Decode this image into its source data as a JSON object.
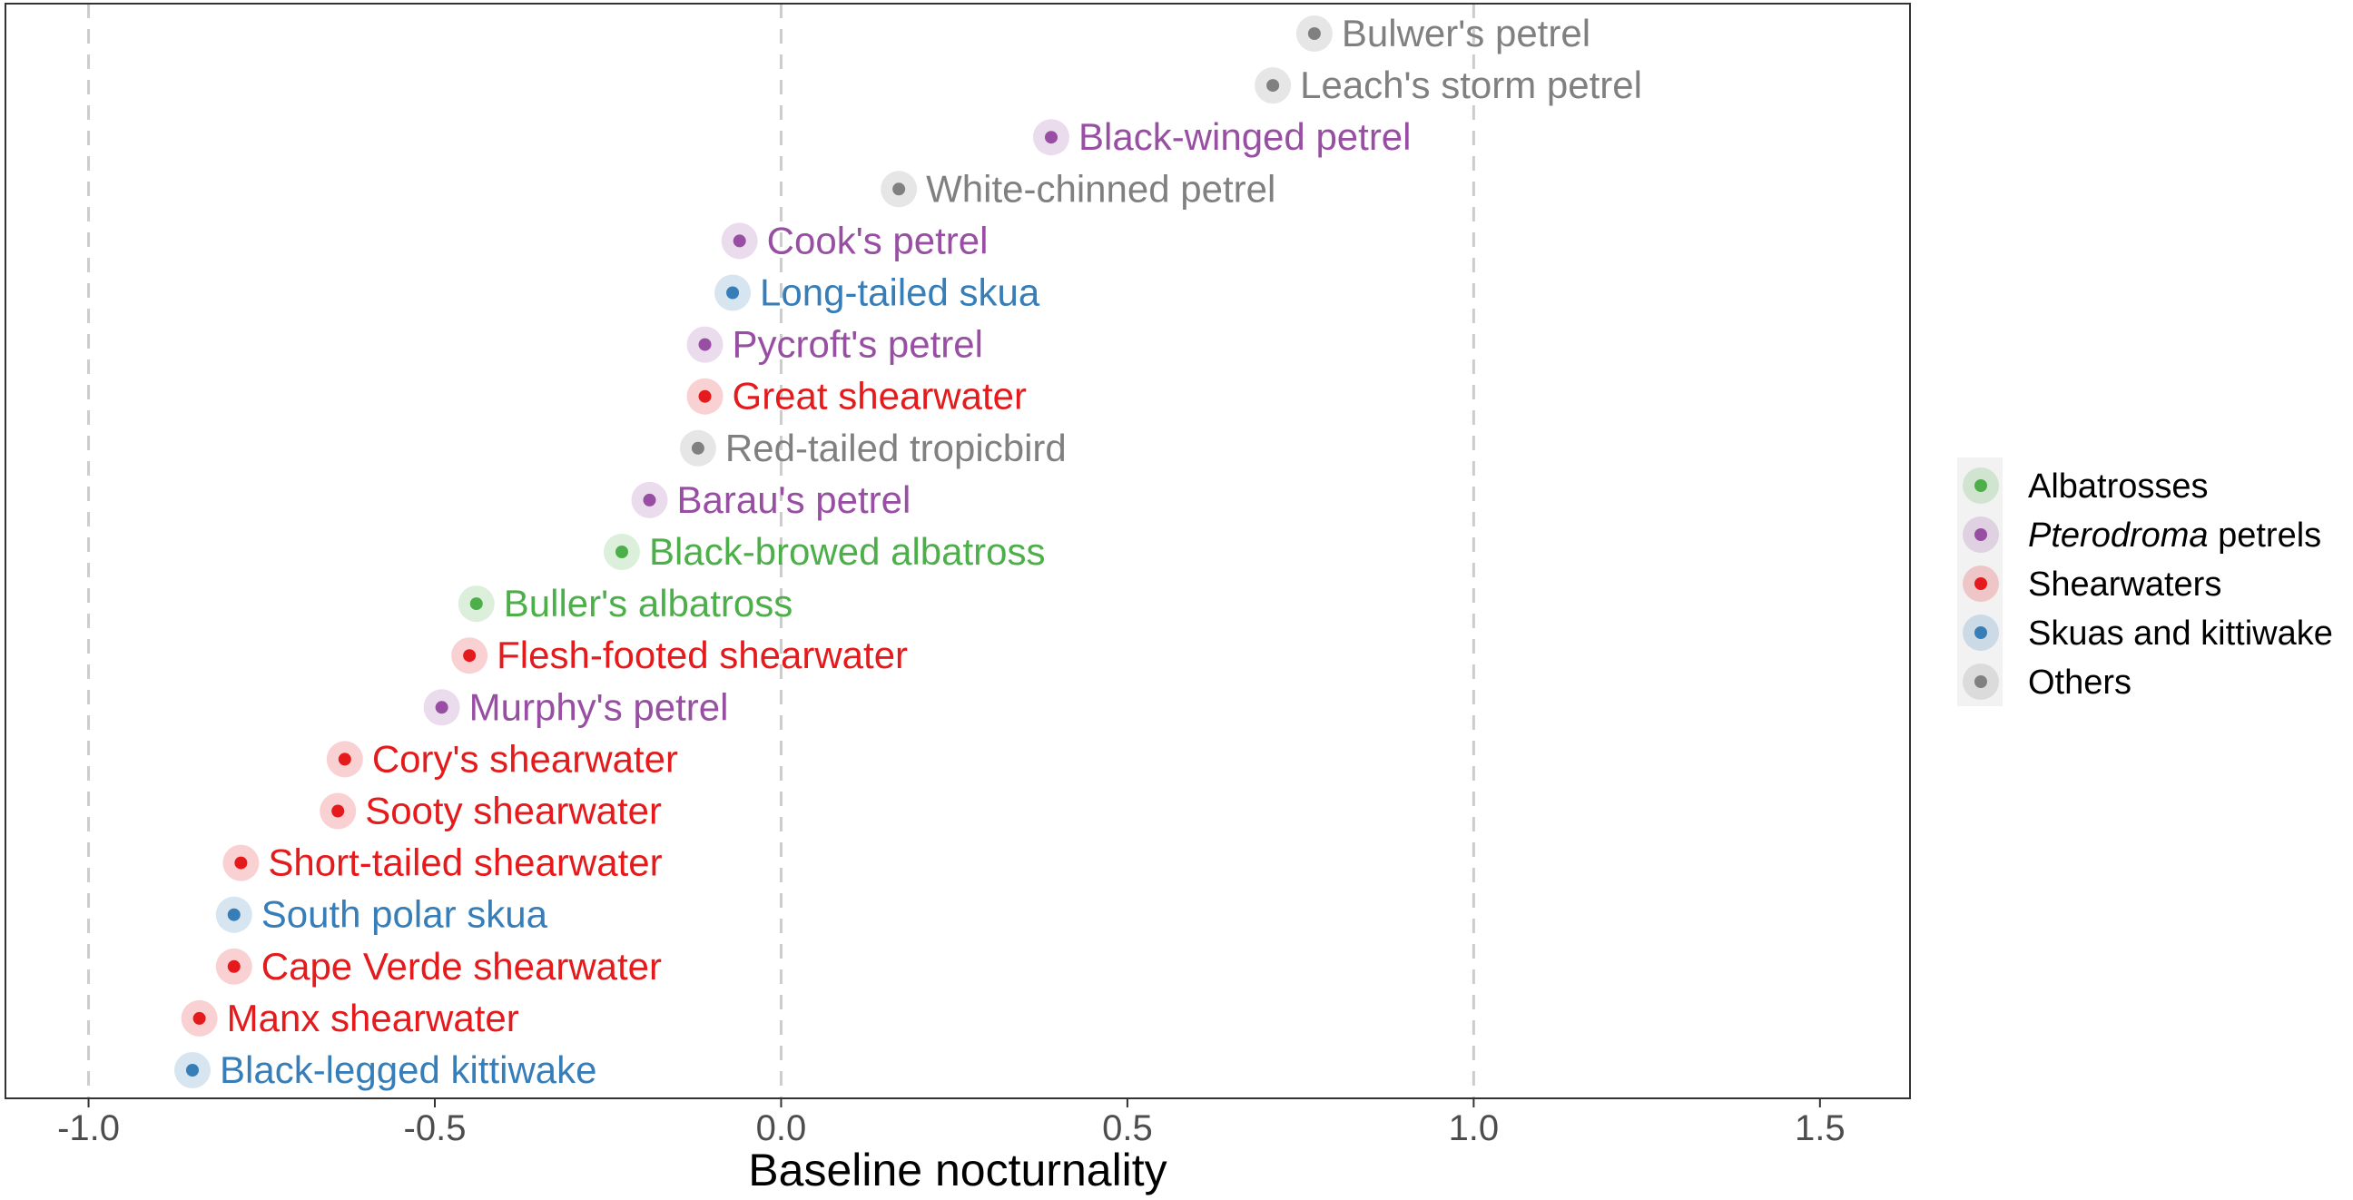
{
  "chart_data": {
    "type": "scatter",
    "xlabel": "Baseline nocturnality",
    "xlim": [
      -1.12,
      1.63
    ],
    "xticks": [
      -1.0,
      -0.5,
      0.0,
      0.5,
      1.0,
      1.5
    ],
    "xtick_labels": [
      "-1.0",
      "-0.5",
      "0.0",
      "0.5",
      "1.0",
      "1.5"
    ],
    "vertical_reference_lines": [
      -1.0,
      0.0,
      1.0
    ],
    "grid": false,
    "legend_position": "right",
    "groups": [
      {
        "name_italic": "",
        "name": "Albatrosses",
        "color": "#4daf4a"
      },
      {
        "name_italic": "Pterodroma",
        "name": " petrels",
        "color": "#984ea3"
      },
      {
        "name_italic": "",
        "name": "Shearwaters",
        "color": "#e41a1c"
      },
      {
        "name_italic": "",
        "name": "Skuas and kittiwake",
        "color": "#377eb8"
      },
      {
        "name_italic": "",
        "name": "Others",
        "color": "#808080"
      }
    ],
    "points": [
      {
        "species": "Bulwer's petrel",
        "x": 0.77,
        "group": 4
      },
      {
        "species": "Leach's storm petrel",
        "x": 0.71,
        "group": 4
      },
      {
        "species": "Black-winged petrel",
        "x": 0.39,
        "group": 1
      },
      {
        "species": "White-chinned petrel",
        "x": 0.17,
        "group": 4
      },
      {
        "species": "Cook's petrel",
        "x": -0.06,
        "group": 1
      },
      {
        "species": "Long-tailed skua",
        "x": -0.07,
        "group": 3
      },
      {
        "species": "Pycroft's petrel",
        "x": -0.11,
        "group": 1
      },
      {
        "species": "Great shearwater",
        "x": -0.11,
        "group": 2
      },
      {
        "species": "Red-tailed tropicbird",
        "x": -0.12,
        "group": 4
      },
      {
        "species": "Barau's petrel",
        "x": -0.19,
        "group": 1
      },
      {
        "species": "Black-browed albatross",
        "x": -0.23,
        "group": 0
      },
      {
        "species": "Buller's albatross",
        "x": -0.44,
        "group": 0
      },
      {
        "species": "Flesh-footed shearwater",
        "x": -0.45,
        "group": 2
      },
      {
        "species": "Murphy's petrel",
        "x": -0.49,
        "group": 1
      },
      {
        "species": "Cory's shearwater",
        "x": -0.63,
        "group": 2
      },
      {
        "species": "Sooty shearwater",
        "x": -0.64,
        "group": 2
      },
      {
        "species": "Short-tailed shearwater",
        "x": -0.78,
        "group": 2
      },
      {
        "species": "South polar skua",
        "x": -0.79,
        "group": 3
      },
      {
        "species": "Cape Verde shearwater",
        "x": -0.79,
        "group": 2
      },
      {
        "species": "Manx shearwater",
        "x": -0.84,
        "group": 2
      },
      {
        "species": "Black-legged kittiwake",
        "x": -0.85,
        "group": 3
      }
    ]
  }
}
